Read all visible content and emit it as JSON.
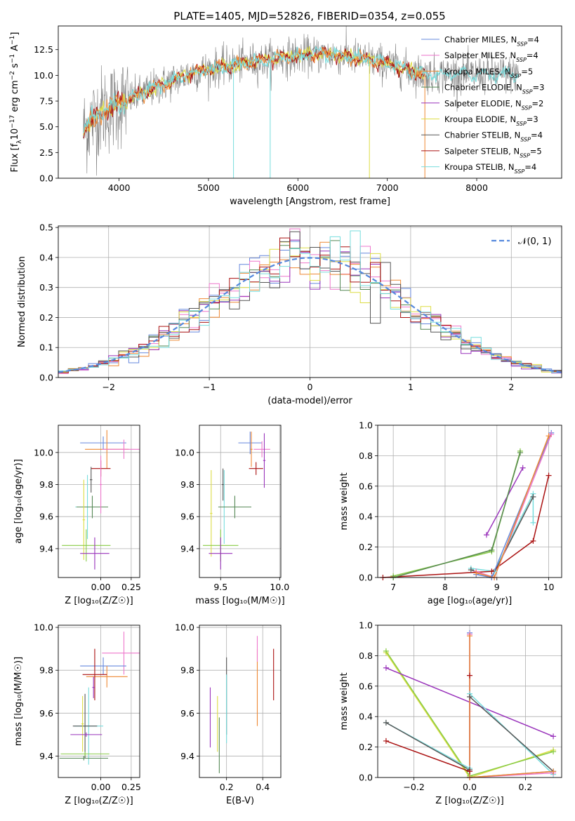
{
  "figure": {
    "title": "PLATE=1405, MJD=52826, FIBERID=0354, z=0.055"
  },
  "colors": {
    "Chabrier MILES": "#6688dd",
    "Salpeter MILES": "#ee77cc",
    "Kroupa MILES": "#ee8833",
    "Chabrier ELODIE": "#558855",
    "Salpeter ELODIE": "#9933bb",
    "Kroupa ELODIE": "#dddd44",
    "Chabrier STELIB": "#555555",
    "Salpeter STELIB": "#aa1111",
    "Kroupa STELIB": "#77dddd",
    "Kroupa ELODIE alt": "#88cc44",
    "data": "#808080",
    "normal": "#5588dd",
    "grid": "#b0b0b0"
  },
  "chart_data": [
    {
      "id": "spectrum",
      "type": "line",
      "xlabel": "wavelength [Angstrom, rest frame]",
      "ylabel_parts": [
        "Flux [f",
        "λ",
        "10",
        "−17",
        " erg cm",
        "−2",
        " s",
        "−1",
        " A",
        "−1",
        "]"
      ],
      "xlim": [
        3320,
        8950
      ],
      "ylim": [
        0,
        14.8
      ],
      "xticks": [
        4000,
        5000,
        6000,
        7000,
        8000
      ],
      "yticks": [
        0.0,
        2.5,
        5.0,
        7.5,
        10.0,
        12.5
      ],
      "ytick_labels": [
        "0.0",
        "2.5",
        "5.0",
        "7.5",
        "10.0",
        "12.5"
      ],
      "legend": [
        {
          "label": "Chabrier MILES, N",
          "sub": "SSP",
          "suffix": "=4",
          "key": "Chabrier MILES"
        },
        {
          "label": "Salpeter MILES, N",
          "sub": "SSP",
          "suffix": "=4",
          "key": "Salpeter MILES"
        },
        {
          "label": "Kroupa MILES, N",
          "sub": "SSP",
          "suffix": "=5",
          "key": "Kroupa MILES"
        },
        {
          "label": "Chabrier ELODIE, N",
          "sub": "SSP",
          "suffix": "=3",
          "key": "Chabrier ELODIE"
        },
        {
          "label": "Salpeter ELODIE, N",
          "sub": "SSP",
          "suffix": "=2",
          "key": "Salpeter ELODIE"
        },
        {
          "label": "Kroupa ELODIE, N",
          "sub": "SSP",
          "suffix": "=3",
          "key": "Kroupa ELODIE"
        },
        {
          "label": "Chabrier STELIB, N",
          "sub": "SSP",
          "suffix": "=4",
          "key": "Chabrier STELIB"
        },
        {
          "label": "Salpeter STELIB, N",
          "sub": "SSP",
          "suffix": "=5",
          "key": "Salpeter STELIB"
        },
        {
          "label": "Kroupa STELIB, N",
          "sub": "SSP",
          "suffix": "=4",
          "key": "Kroupa STELIB"
        }
      ],
      "continuum": {
        "x": [
          3600,
          3700,
          3800,
          3900,
          4000,
          4200,
          4400,
          4600,
          4800,
          5000,
          5200,
          5400,
          5600,
          5800,
          6000,
          6200,
          6400,
          6600,
          6800,
          7000,
          7200,
          7400
        ],
        "y": [
          4.6,
          5.6,
          6.5,
          6.8,
          7.3,
          8.0,
          8.8,
          9.5,
          10.2,
          10.6,
          10.9,
          11.2,
          11.4,
          11.7,
          11.9,
          12.0,
          12.0,
          11.8,
          11.5,
          11.1,
          10.6,
          10.1
        ]
      },
      "spikes": [
        {
          "x": 5280,
          "y": 0
        },
        {
          "x": 5690,
          "y": 0
        },
        {
          "x": 6800,
          "y": 0
        },
        {
          "x": 7420,
          "y": 0
        }
      ]
    },
    {
      "id": "residuals",
      "type": "line",
      "xlabel": "(data-model)/error",
      "ylabel": "Normed distribution",
      "xlim": [
        -2.5,
        2.5
      ],
      "ylim": [
        0,
        0.505
      ],
      "xticks": [
        -2,
        -1,
        0,
        1,
        2
      ],
      "xtick_labels": [
        "−2",
        "−1",
        "0",
        "1",
        "2"
      ],
      "yticks": [
        0.0,
        0.1,
        0.2,
        0.3,
        0.4,
        0.5
      ],
      "ytick_labels": [
        "0.0",
        "0.1",
        "0.2",
        "0.3",
        "0.4",
        "0.5"
      ],
      "legend_label": "𝒩(0, 1)",
      "normal": {
        "mu": 0,
        "sigma": 1
      },
      "bin_width": 0.1
    },
    {
      "id": "age_vs_Z",
      "type": "scatter",
      "xlabel": "Z [log₁₀(Z/Z☉)]",
      "ylabel": "age  [log₁₀(age/yr)]",
      "xlim": [
        -0.35,
        0.32
      ],
      "ylim": [
        9.22,
        10.17
      ],
      "xticks": [
        0.0,
        0.25
      ],
      "xtick_labels": [
        "0.00",
        "0.25"
      ],
      "yticks": [
        9.4,
        9.6,
        9.8,
        10.0
      ],
      "ytick_labels": [
        "9.4",
        "9.6",
        "9.8",
        "10.0"
      ],
      "points": [
        {
          "key": "Chabrier MILES",
          "x": 0.02,
          "y": 10.06,
          "xe": 0.19,
          "ye": 0.04
        },
        {
          "key": "Kroupa MILES",
          "x": 0.05,
          "y": 10.02,
          "xe": 0.18,
          "ye": 0.12
        },
        {
          "key": "Salpeter MILES",
          "x": 0.19,
          "y": 10.02,
          "xe": 0.18,
          "ye": 0.06
        },
        {
          "key": "Salpeter STELIB",
          "x": 0.0,
          "y": 9.9,
          "xe": 0.08,
          "ye": 0.05
        },
        {
          "key": "Chabrier STELIB",
          "x": -0.08,
          "y": 9.83,
          "xe": 0.01,
          "ye": 0.08
        },
        {
          "key": "Kroupa STELIB",
          "x": -0.11,
          "y": 9.66,
          "xe": 0.1,
          "ye": 0.2
        },
        {
          "key": "Chabrier ELODIE",
          "x": -0.07,
          "y": 9.66,
          "xe": 0.13,
          "ye": 0.07
        },
        {
          "key": "Kroupa ELODIE",
          "x": -0.14,
          "y": 9.58,
          "xe": 0.01,
          "ye": 0.25
        },
        {
          "key": "Kroupa ELODIE alt",
          "x": -0.12,
          "y": 9.42,
          "xe": 0.2,
          "ye": 0.1
        },
        {
          "key": "Salpeter ELODIE",
          "x": -0.05,
          "y": 9.37,
          "xe": 0.12,
          "ye": 0.1
        },
        {
          "key": "Salpeter MILES",
          "x": 0.0,
          "y": 9.8,
          "xe": 0.01,
          "ye": 0.18
        }
      ]
    },
    {
      "id": "age_vs_mass",
      "type": "scatter",
      "xlabel": "mass [log₁₀(M/M☉)]",
      "xlim": [
        9.32,
        10.01
      ],
      "ylim": [
        9.22,
        10.17
      ],
      "xticks": [
        9.5,
        10.0
      ],
      "xtick_labels": [
        "9.5",
        "10.0"
      ],
      "yticks": [
        9.4,
        9.6,
        9.8,
        10.0
      ],
      "ytick_labels": [
        "9.4",
        "9.6",
        "9.8",
        "10.0"
      ],
      "points": [
        {
          "key": "Chabrier MILES",
          "x": 9.75,
          "y": 10.06,
          "xe": 0.1,
          "ye": 0.07
        },
        {
          "key": "Salpeter MILES",
          "x": 9.85,
          "y": 10.02,
          "xe": 0.07,
          "ye": 0.05
        },
        {
          "key": "Kroupa MILES",
          "x": 9.76,
          "y": 10.02,
          "xe": 0.01,
          "ye": 0.11
        },
        {
          "key": "Salpeter STELIB",
          "x": 9.8,
          "y": 9.9,
          "xe": 0.06,
          "ye": 0.04
        },
        {
          "key": "Chabrier STELIB",
          "x": 9.52,
          "y": 9.8,
          "xe": 0.01,
          "ye": 0.1
        },
        {
          "key": "Kroupa STELIB",
          "x": 9.53,
          "y": 9.66,
          "xe": 0.01,
          "ye": 0.23
        },
        {
          "key": "Chabrier ELODIE",
          "x": 9.62,
          "y": 9.66,
          "xe": 0.14,
          "ye": 0.07
        },
        {
          "key": "Kroupa ELODIE",
          "x": 9.42,
          "y": 9.62,
          "xe": 0.01,
          "ye": 0.27
        },
        {
          "key": "Kroupa ELODIE alt",
          "x": 9.5,
          "y": 9.42,
          "xe": 0.15,
          "ye": 0.1
        },
        {
          "key": "Salpeter ELODIE",
          "x": 9.5,
          "y": 9.37,
          "xe": 0.1,
          "ye": 0.1
        },
        {
          "key": "Salpeter ELODIE",
          "x": 9.87,
          "y": 9.95,
          "xe": 0.01,
          "ye": 0.17
        }
      ]
    },
    {
      "id": "massweight_vs_age",
      "type": "line",
      "xlabel": "age  [log₁₀(age/yr)]",
      "ylabel": "mass weight",
      "xlim": [
        6.7,
        10.25
      ],
      "ylim": [
        0,
        1
      ],
      "xticks": [
        7,
        8,
        9,
        10
      ],
      "xtick_labels": [
        "7",
        "8",
        "9",
        "10"
      ],
      "yticks": [
        0.0,
        0.2,
        0.4,
        0.6,
        0.8,
        1.0
      ],
      "ytick_labels": [
        "0.0",
        "0.2",
        "0.4",
        "0.6",
        "0.8",
        "1.0"
      ],
      "series": [
        {
          "key": "Kroupa ELODIE",
          "x": [
            7.0,
            8.9,
            9.45
          ],
          "y": [
            0.0,
            0.18,
            0.82
          ]
        },
        {
          "key": "Kroupa ELODIE alt",
          "x": [
            7.0,
            8.9,
            9.45
          ],
          "y": [
            0.01,
            0.17,
            0.83
          ]
        },
        {
          "key": "Salpeter ELODIE",
          "x": [
            8.8,
            9.5
          ],
          "y": [
            0.28,
            0.72
          ]
        },
        {
          "key": "Kroupa STELIB",
          "x": [
            8.5,
            8.95,
            9.7,
            9.7
          ],
          "y": [
            0.06,
            0.04,
            0.55,
            0.36
          ]
        },
        {
          "key": "Chabrier STELIB",
          "x": [
            8.5,
            8.9,
            9.7
          ],
          "y": [
            0.05,
            0.0,
            0.53
          ]
        },
        {
          "key": "Salpeter STELIB",
          "x": [
            6.8,
            8.9,
            9.7,
            10.0
          ],
          "y": [
            0.0,
            0.04,
            0.24,
            0.67
          ]
        },
        {
          "key": "Chabrier MILES",
          "x": [
            8.6,
            8.9,
            10.05
          ],
          "y": [
            0.02,
            0.0,
            0.95
          ]
        },
        {
          "key": "Salpeter MILES",
          "x": [
            8.6,
            8.95,
            10.05
          ],
          "y": [
            0.04,
            0.0,
            0.94
          ]
        },
        {
          "key": "Kroupa MILES",
          "x": [
            8.6,
            8.95,
            10.0
          ],
          "y": [
            0.03,
            0.0,
            0.93
          ]
        },
        {
          "key": "Chabrier ELODIE",
          "x": [
            7.0,
            8.9,
            9.45
          ],
          "y": [
            0.0,
            0.18,
            0.82
          ]
        }
      ]
    },
    {
      "id": "mass_vs_Z",
      "type": "scatter",
      "xlabel": "Z [log₁₀(Z/Z☉)]",
      "ylabel": "mass [log₁₀(M/M☉)]",
      "xlim": [
        -0.35,
        0.32
      ],
      "ylim": [
        9.3,
        10.01
      ],
      "xticks": [
        0.0,
        0.25
      ],
      "xtick_labels": [
        "0.00",
        "0.25"
      ],
      "yticks": [
        9.4,
        9.6,
        9.8,
        10.0
      ],
      "ytick_labels": [
        "9.4",
        "9.6",
        "9.8",
        "10.0"
      ],
      "points": [
        {
          "key": "Salpeter MILES",
          "x": 0.19,
          "y": 9.88,
          "xe": 0.18,
          "ye": 0.1
        },
        {
          "key": "Chabrier MILES",
          "x": 0.02,
          "y": 9.82,
          "xe": 0.19,
          "ye": 0.04
        },
        {
          "key": "Kroupa MILES",
          "x": 0.05,
          "y": 9.77,
          "xe": 0.17,
          "ye": 0.05
        },
        {
          "key": "Salpeter STELIB",
          "x": -0.05,
          "y": 9.78,
          "xe": 0.1,
          "ye": 0.12
        },
        {
          "key": "Salpeter ELODIE",
          "x": -0.06,
          "y": 9.72,
          "xe": 0.01,
          "ye": 0.05
        },
        {
          "key": "Kroupa STELIB",
          "x": -0.1,
          "y": 9.54,
          "xe": 0.12,
          "ye": 0.18
        },
        {
          "key": "Chabrier STELIB",
          "x": -0.13,
          "y": 9.54,
          "xe": 0.1,
          "ye": 0.15
        },
        {
          "key": "Kroupa ELODIE",
          "x": -0.15,
          "y": 9.55,
          "xe": 0.01,
          "ye": 0.13
        },
        {
          "key": "Salpeter ELODIE",
          "x": -0.12,
          "y": 9.5,
          "xe": 0.13,
          "ye": 0.01
        },
        {
          "key": "Kroupa ELODIE alt",
          "x": -0.13,
          "y": 9.41,
          "xe": 0.2,
          "ye": 0.01
        },
        {
          "key": "Chabrier ELODIE",
          "x": -0.14,
          "y": 9.39,
          "xe": 0.2,
          "ye": 0.01
        }
      ]
    },
    {
      "id": "mass_vs_EBV",
      "type": "scatter",
      "xlabel": "E(B-V)",
      "xlim": [
        0.05,
        0.5
      ],
      "ylim": [
        9.3,
        10.01
      ],
      "xticks": [
        0.2,
        0.4
      ],
      "xtick_labels": [
        "0.2",
        "0.4"
      ],
      "yticks": [
        9.4,
        9.6,
        9.8,
        10.0
      ],
      "ytick_labels": [
        "9.4",
        "9.6",
        "9.8",
        "10.0"
      ],
      "points": [
        {
          "key": "Salpeter ELODIE",
          "x": 0.11,
          "y": 9.58,
          "ye": 0.14
        },
        {
          "key": "Kroupa ELODIE",
          "x": 0.15,
          "y": 9.55,
          "ye": 0.13
        },
        {
          "key": "Chabrier ELODIE",
          "x": 0.16,
          "y": 9.45,
          "ye": 0.13
        },
        {
          "key": "Chabrier STELIB",
          "x": 0.2,
          "y": 9.68,
          "ye": 0.18
        },
        {
          "key": "Kroupa STELIB",
          "x": 0.2,
          "y": 9.62,
          "ye": 0.16
        },
        {
          "key": "Kroupa MILES",
          "x": 0.37,
          "y": 9.72,
          "ye": 0.18
        },
        {
          "key": "Salpeter MILES",
          "x": 0.37,
          "y": 9.9,
          "ye": 0.06
        },
        {
          "key": "Salpeter STELIB",
          "x": 0.46,
          "y": 9.78,
          "ye": 0.12
        }
      ]
    },
    {
      "id": "massweight_vs_Z",
      "type": "line",
      "xlabel": "Z [log₁₀(Z/Z☉)]",
      "ylabel": "mass weight",
      "xlim": [
        -0.33,
        0.33
      ],
      "ylim": [
        0,
        1
      ],
      "xticks": [
        -0.2,
        0.0,
        0.2
      ],
      "xtick_labels": [
        "−0.2",
        "0.0",
        "0.2"
      ],
      "yticks": [
        0.0,
        0.2,
        0.4,
        0.6,
        0.8,
        1.0
      ],
      "ytick_labels": [
        "0.0",
        "0.2",
        "0.4",
        "0.6",
        "0.8",
        "1.0"
      ],
      "series": [
        {
          "key": "Kroupa ELODIE",
          "x": [
            -0.3,
            0.0,
            0.3
          ],
          "y": [
            0.82,
            0.0,
            0.18
          ]
        },
        {
          "key": "Kroupa ELODIE alt",
          "x": [
            -0.3,
            0.0,
            0.3
          ],
          "y": [
            0.83,
            0.01,
            0.17
          ]
        },
        {
          "key": "Salpeter ELODIE",
          "x": [
            -0.3,
            0.3
          ],
          "y": [
            0.72,
            0.27
          ]
        },
        {
          "key": "Kroupa STELIB",
          "x": [
            -0.3,
            0.0,
            0.0,
            0.3
          ],
          "y": [
            0.36,
            0.06,
            0.55,
            0.02
          ]
        },
        {
          "key": "Chabrier STELIB",
          "x": [
            -0.3,
            0.0,
            0.0,
            0.3
          ],
          "y": [
            0.36,
            0.05,
            0.53,
            0.04
          ]
        },
        {
          "key": "Salpeter STELIB",
          "x": [
            -0.3,
            0.0,
            0.0
          ],
          "y": [
            0.24,
            0.04,
            0.67
          ]
        },
        {
          "key": "Chabrier MILES",
          "x": [
            0.0,
            0.0,
            0.3
          ],
          "y": [
            0.95,
            0.0,
            0.04
          ]
        },
        {
          "key": "Salpeter MILES",
          "x": [
            0.0,
            0.0,
            0.3
          ],
          "y": [
            0.94,
            0.0,
            0.03
          ]
        },
        {
          "key": "Kroupa MILES",
          "x": [
            0.0,
            0.0,
            0.3
          ],
          "y": [
            0.93,
            0.0,
            0.04
          ]
        }
      ]
    }
  ]
}
